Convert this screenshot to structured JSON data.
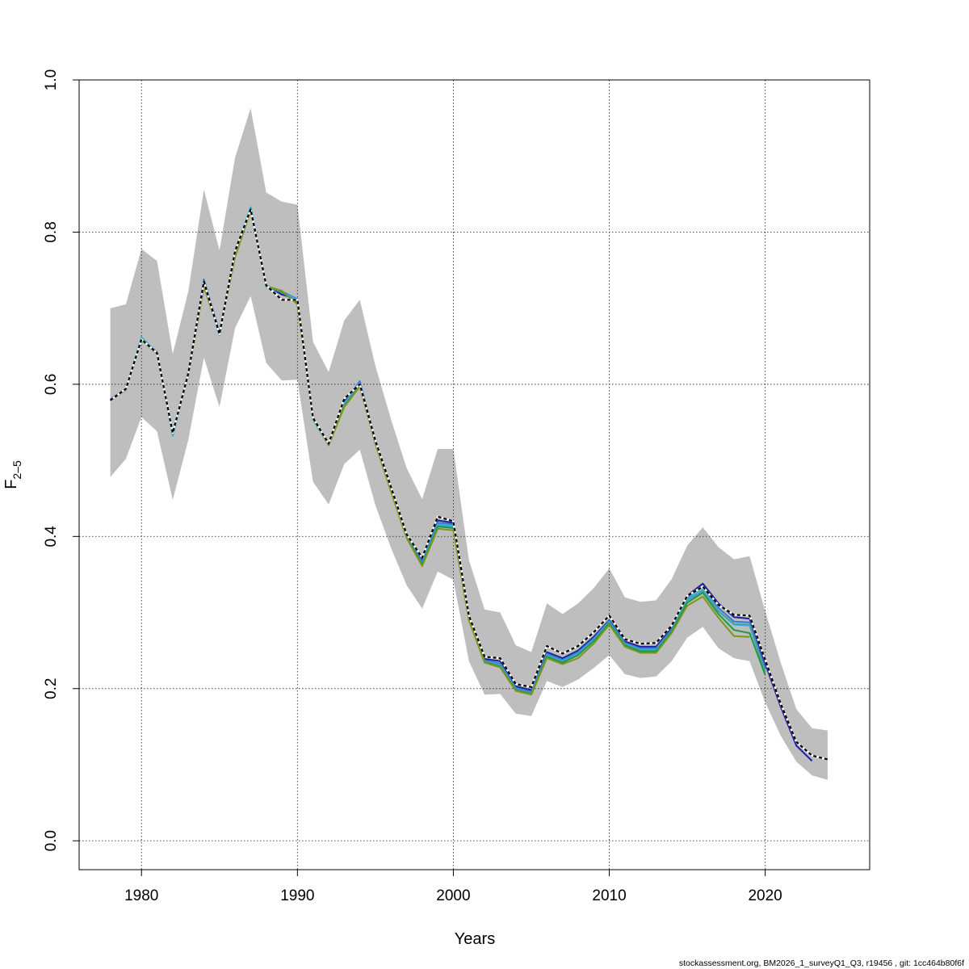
{
  "chart_data": {
    "type": "line",
    "xlabel": "Years",
    "ylabel_main": "F",
    "ylabel_sub": "2–5",
    "xlim": [
      1976,
      2026.7
    ],
    "ylim": [
      -0.038,
      1.0
    ],
    "x_ticks": [
      1980,
      1990,
      2000,
      2010,
      2020
    ],
    "y_ticks": [
      0.0,
      0.2,
      0.4,
      0.6,
      0.8,
      1.0
    ],
    "y_tick_labels": [
      "0.0",
      "0.2",
      "0.4",
      "0.6",
      "0.8",
      "1.0"
    ],
    "grid": true,
    "footer": "stockassessment.org, BM2026_1_surveyQ1_Q3, r19456 , git: 1cc464b80f6f",
    "band": {
      "color": "#bebebe",
      "x": [
        1978,
        1979,
        1980,
        1981,
        1982,
        1983,
        1984,
        1985,
        1986,
        1987,
        1988,
        1989,
        1990,
        1991,
        1992,
        1993,
        1994,
        1995,
        1996,
        1997,
        1998,
        1999,
        2000,
        2001,
        2002,
        2003,
        2004,
        2005,
        2006,
        2007,
        2008,
        2009,
        2010,
        2011,
        2012,
        2013,
        2014,
        2015,
        2016,
        2017,
        2018,
        2019,
        2020,
        2021,
        2022,
        2023,
        2024
      ],
      "upper": [
        0.7,
        0.705,
        0.778,
        0.762,
        0.64,
        0.722,
        0.856,
        0.776,
        0.898,
        0.963,
        0.852,
        0.84,
        0.836,
        0.656,
        0.616,
        0.684,
        0.711,
        0.624,
        0.554,
        0.49,
        0.449,
        0.515,
        0.515,
        0.369,
        0.304,
        0.3,
        0.257,
        0.248,
        0.312,
        0.298,
        0.312,
        0.332,
        0.358,
        0.32,
        0.314,
        0.316,
        0.344,
        0.388,
        0.412,
        0.386,
        0.37,
        0.374,
        0.302,
        0.234,
        0.173,
        0.148,
        0.145
      ],
      "lower": [
        0.478,
        0.502,
        0.557,
        0.538,
        0.448,
        0.527,
        0.635,
        0.57,
        0.674,
        0.716,
        0.628,
        0.605,
        0.606,
        0.472,
        0.442,
        0.495,
        0.514,
        0.441,
        0.385,
        0.336,
        0.305,
        0.354,
        0.343,
        0.236,
        0.192,
        0.193,
        0.167,
        0.164,
        0.21,
        0.202,
        0.212,
        0.227,
        0.244,
        0.219,
        0.214,
        0.216,
        0.236,
        0.267,
        0.281,
        0.253,
        0.24,
        0.236,
        0.182,
        0.138,
        0.104,
        0.086,
        0.08
      ]
    },
    "series": [
      {
        "color": "#1f1f9e",
        "x": [
          1978,
          1979,
          1980,
          1981,
          1982,
          1983,
          1984,
          1985,
          1986,
          1987,
          1988,
          1989,
          1990,
          1991,
          1992,
          1993,
          1994,
          1995,
          1996,
          1997,
          1998,
          1999,
          2000,
          2001,
          2002,
          2003,
          2004,
          2005,
          2006,
          2007,
          2008,
          2009,
          2010,
          2011,
          2012,
          2013,
          2014,
          2015,
          2016,
          2017,
          2018,
          2019,
          2020,
          2021,
          2022,
          2023
        ],
        "values": [
          0.58,
          0.594,
          0.66,
          0.642,
          0.535,
          0.616,
          0.737,
          0.668,
          0.776,
          0.83,
          0.73,
          0.718,
          0.712,
          0.556,
          0.522,
          0.578,
          0.603,
          0.526,
          0.465,
          0.403,
          0.37,
          0.421,
          0.418,
          0.294,
          0.239,
          0.236,
          0.203,
          0.198,
          0.248,
          0.24,
          0.25,
          0.268,
          0.29,
          0.262,
          0.255,
          0.255,
          0.28,
          0.322,
          0.338,
          0.312,
          0.294,
          0.292,
          0.233,
          0.176,
          0.125,
          0.105
        ]
      },
      {
        "color": "#3a78d8",
        "x": [
          1978,
          1979,
          1980,
          1981,
          1982,
          1983,
          1984,
          1985,
          1986,
          1987,
          1988,
          1989,
          1990,
          1991,
          1992,
          1993,
          1994,
          1995,
          1996,
          1997,
          1998,
          1999,
          2000,
          2001,
          2002,
          2003,
          2004,
          2005,
          2006,
          2007,
          2008,
          2009,
          2010,
          2011,
          2012,
          2013,
          2014,
          2015,
          2016,
          2017,
          2018,
          2019,
          2020
        ],
        "values": [
          0.58,
          0.594,
          0.661,
          0.642,
          0.534,
          0.615,
          0.738,
          0.666,
          0.775,
          0.832,
          0.729,
          0.722,
          0.712,
          0.555,
          0.521,
          0.575,
          0.604,
          0.525,
          0.463,
          0.401,
          0.366,
          0.418,
          0.416,
          0.293,
          0.237,
          0.233,
          0.201,
          0.196,
          0.246,
          0.238,
          0.248,
          0.266,
          0.289,
          0.26,
          0.253,
          0.253,
          0.278,
          0.32,
          0.334,
          0.306,
          0.288,
          0.287,
          0.226
        ]
      },
      {
        "color": "#29b6e0",
        "x": [
          1978,
          1979,
          1980,
          1981,
          1982,
          1983,
          1984,
          1985,
          1986,
          1987,
          1988,
          1989,
          1990,
          1991,
          1992,
          1993,
          1994,
          1995,
          1996,
          1997,
          1998,
          1999,
          2000,
          2001,
          2002,
          2003,
          2004,
          2005,
          2006,
          2007,
          2008,
          2009,
          2010,
          2011,
          2012,
          2013,
          2014,
          2015,
          2016,
          2017,
          2018,
          2019,
          2020
        ],
        "values": [
          0.579,
          0.593,
          0.662,
          0.641,
          0.532,
          0.614,
          0.733,
          0.664,
          0.774,
          0.833,
          0.728,
          0.721,
          0.711,
          0.554,
          0.52,
          0.574,
          0.601,
          0.523,
          0.461,
          0.399,
          0.364,
          0.416,
          0.414,
          0.292,
          0.236,
          0.231,
          0.199,
          0.194,
          0.244,
          0.236,
          0.246,
          0.264,
          0.288,
          0.259,
          0.251,
          0.251,
          0.276,
          0.318,
          0.33,
          0.302,
          0.284,
          0.283,
          0.222
        ]
      },
      {
        "color": "#4f9ea0",
        "x": [
          1978,
          1979,
          1980,
          1981,
          1982,
          1983,
          1984,
          1985,
          1986,
          1987,
          1988,
          1989,
          1990,
          1991,
          1992,
          1993,
          1994,
          1995,
          1996,
          1997,
          1998,
          1999,
          2000,
          2001,
          2002,
          2003,
          2004,
          2005,
          2006,
          2007,
          2008,
          2009,
          2010,
          2011,
          2012,
          2013,
          2014,
          2015,
          2016,
          2017,
          2018,
          2019,
          2020
        ],
        "values": [
          0.579,
          0.593,
          0.66,
          0.641,
          0.534,
          0.614,
          0.731,
          0.666,
          0.772,
          0.83,
          0.729,
          0.721,
          0.708,
          0.555,
          0.521,
          0.573,
          0.6,
          0.523,
          0.461,
          0.399,
          0.363,
          0.414,
          0.412,
          0.292,
          0.236,
          0.23,
          0.199,
          0.194,
          0.243,
          0.235,
          0.245,
          0.263,
          0.287,
          0.258,
          0.25,
          0.25,
          0.276,
          0.316,
          0.328,
          0.302,
          0.285,
          0.284,
          0.222
        ]
      },
      {
        "color": "#1f9a48",
        "x": [
          1978,
          1979,
          1980,
          1981,
          1982,
          1983,
          1984,
          1985,
          1986,
          1987,
          1988,
          1989,
          1990,
          1991,
          1992,
          1993,
          1994,
          1995,
          1996,
          1997,
          1998,
          1999,
          2000,
          2001,
          2002,
          2003,
          2004,
          2005,
          2006,
          2007,
          2008,
          2009,
          2010,
          2011,
          2012,
          2013,
          2014,
          2015,
          2016,
          2017,
          2018,
          2019,
          2020
        ],
        "values": [
          0.579,
          0.593,
          0.659,
          0.64,
          0.535,
          0.613,
          0.729,
          0.667,
          0.769,
          0.829,
          0.729,
          0.722,
          0.706,
          0.555,
          0.52,
          0.571,
          0.598,
          0.522,
          0.46,
          0.399,
          0.363,
          0.413,
          0.411,
          0.291,
          0.235,
          0.229,
          0.198,
          0.193,
          0.242,
          0.234,
          0.244,
          0.262,
          0.286,
          0.257,
          0.249,
          0.249,
          0.275,
          0.313,
          0.326,
          0.298,
          0.277,
          0.273,
          0.218
        ]
      },
      {
        "color": "#7f961e",
        "x": [
          1978,
          1979,
          1980,
          1981,
          1982,
          1983,
          1984,
          1985,
          1986,
          1987,
          1988,
          1989,
          1990,
          1991,
          1992,
          1993,
          1994,
          1995,
          1996,
          1997,
          1998,
          1999,
          2000,
          2001,
          2002,
          2003,
          2004,
          2005,
          2006,
          2007,
          2008,
          2009,
          2010,
          2011,
          2012,
          2013,
          2014,
          2015,
          2016,
          2017,
          2018,
          2019
        ],
        "values": [
          0.579,
          0.593,
          0.658,
          0.64,
          0.536,
          0.613,
          0.728,
          0.668,
          0.767,
          0.828,
          0.729,
          0.723,
          0.705,
          0.556,
          0.52,
          0.57,
          0.597,
          0.522,
          0.459,
          0.398,
          0.361,
          0.41,
          0.408,
          0.29,
          0.234,
          0.228,
          0.197,
          0.192,
          0.24,
          0.232,
          0.24,
          0.259,
          0.284,
          0.255,
          0.247,
          0.247,
          0.273,
          0.309,
          0.321,
          0.293,
          0.269,
          0.268
        ]
      },
      {
        "color": "#000000",
        "dashed": true,
        "x": [
          1978,
          1979,
          1980,
          1981,
          1982,
          1983,
          1984,
          1985,
          1986,
          1987,
          1988,
          1989,
          1990,
          1991,
          1992,
          1993,
          1994,
          1995,
          1996,
          1997,
          1998,
          1999,
          2000,
          2001,
          2002,
          2003,
          2004,
          2005,
          2006,
          2007,
          2008,
          2009,
          2010,
          2011,
          2012,
          2013,
          2014,
          2015,
          2016,
          2017,
          2018,
          2019,
          2020,
          2021,
          2022,
          2023,
          2024
        ],
        "values": [
          0.579,
          0.594,
          0.659,
          0.641,
          0.536,
          0.614,
          0.735,
          0.666,
          0.775,
          0.83,
          0.73,
          0.711,
          0.711,
          0.556,
          0.522,
          0.581,
          0.6,
          0.526,
          0.465,
          0.403,
          0.372,
          0.426,
          0.42,
          0.296,
          0.242,
          0.24,
          0.206,
          0.202,
          0.256,
          0.246,
          0.256,
          0.274,
          0.296,
          0.265,
          0.259,
          0.26,
          0.283,
          0.322,
          0.334,
          0.31,
          0.297,
          0.296,
          0.238,
          0.18,
          0.13,
          0.112,
          0.107
        ]
      }
    ]
  }
}
